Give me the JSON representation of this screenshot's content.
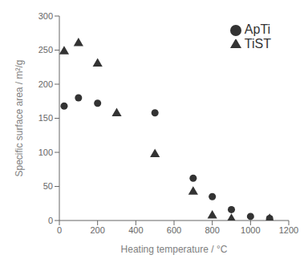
{
  "chart_data": {
    "type": "scatter",
    "xlabel": "Heating temperature / °C",
    "ylabel": "Specific surface area / m²/g",
    "xlim": [
      0,
      1200
    ],
    "ylim": [
      0,
      300
    ],
    "xticks": [
      0,
      200,
      400,
      600,
      800,
      1000,
      1200
    ],
    "yticks": [
      0,
      50,
      100,
      150,
      200,
      250,
      300
    ],
    "grid": false,
    "legend": "upper right",
    "series": [
      {
        "name": "TiST",
        "color": "#333333",
        "marker": "triangle",
        "x": [
          25,
          100,
          200,
          300,
          500,
          700,
          800,
          900,
          1100
        ],
        "values": [
          248,
          260,
          230,
          157,
          97,
          42,
          7,
          2,
          2
        ]
      },
      {
        "name": "ApTi",
        "color": "#333333",
        "marker": "circle",
        "x": [
          25,
          100,
          200,
          500,
          700,
          800,
          900,
          1000,
          1100
        ],
        "values": [
          168,
          180,
          172,
          158,
          62,
          35,
          16,
          6,
          3
        ]
      }
    ]
  }
}
